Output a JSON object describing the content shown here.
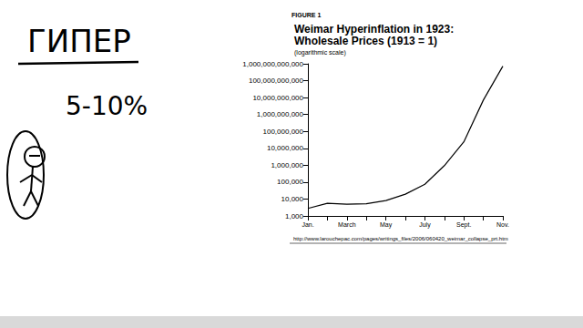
{
  "chart_data": {
    "type": "line",
    "title": "Weimar Hyperinflation in 1923:\nWholesale Prices (1913 = 1)",
    "subtitle": "(logarithmic scale)",
    "annotations": [
      "FIGURE 1",
      "http://www.larouchepac.com/pages/writings_files/2006/060420_weimar_collapse_prt.htm",
      "ГИПЕР",
      "5-10%"
    ],
    "categories": [
      "Jan.",
      null,
      "March",
      null,
      "May",
      null,
      "July",
      null,
      "Sept.",
      null,
      "Nov."
    ],
    "values": [
      2785,
      5585,
      4888,
      5212,
      8170,
      19385,
      74787,
      944041,
      23948898,
      7094800000,
      725700000000
    ],
    "color": "#000000",
    "log": "y",
    "grid": false,
    "marker": "none",
    "ylim": [
      1000,
      1000000000000
    ],
    "yticks": [
      {
        "value": 1000,
        "label": "1,000"
      },
      {
        "value": 10000,
        "label": "10,000"
      },
      {
        "value": 100000,
        "label": "100,000"
      },
      {
        "value": 1000000,
        "label": "1,000,000"
      },
      {
        "value": 10000000,
        "label": "10,000,000"
      },
      {
        "value": 100000000,
        "label": "100,000,000"
      },
      {
        "value": 1000000000,
        "label": "1,000,000,000"
      },
      {
        "value": 10000000000,
        "label": "10,000,000,000"
      },
      {
        "value": 100000000000,
        "label": "100,000,000,000"
      },
      {
        "value": 1000000000000,
        "label": "1,000,000,000,000"
      }
    ]
  }
}
